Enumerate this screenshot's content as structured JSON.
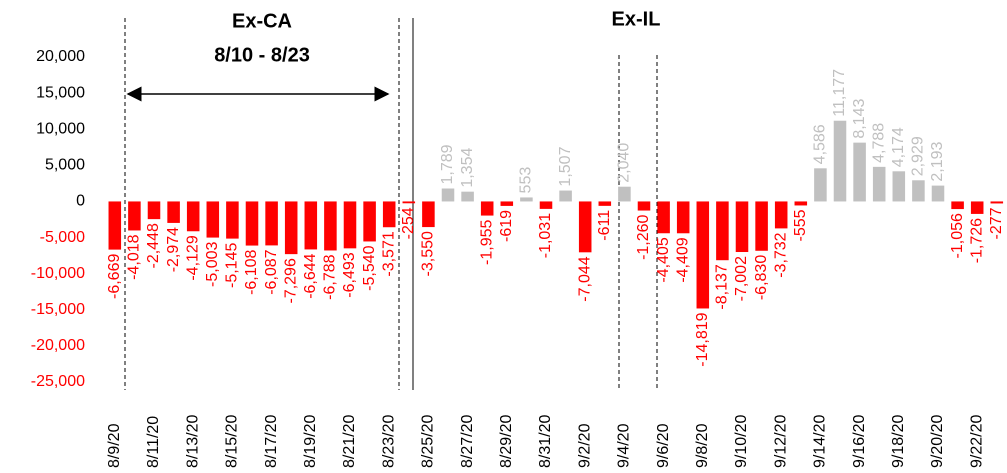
{
  "chart_data": {
    "type": "bar",
    "annotations": [
      "Ex-CA",
      "8/10 - 8/23",
      "Ex-IL"
    ],
    "categories": [
      "8/9/20",
      null,
      "8/11/20",
      null,
      "8/13/20",
      null,
      "8/15/20",
      null,
      "8/17/20",
      null,
      "8/19/20",
      null,
      "8/21/20",
      null,
      "8/23/20",
      null,
      "8/25/20",
      null,
      "8/27/20",
      null,
      "8/29/20",
      null,
      "8/31/20",
      null,
      "9/2/20",
      null,
      "9/4/20",
      null,
      "9/6/20",
      null,
      "9/8/20",
      null,
      "9/10/20",
      null,
      "9/12/20",
      null,
      "9/14/20",
      null,
      "9/16/20",
      null,
      "9/18/20",
      null,
      "9/20/20",
      null,
      "9/22/20",
      null
    ],
    "values": [
      -6669,
      -4018,
      -2448,
      -2974,
      -4129,
      -5003,
      -5145,
      -6108,
      -6087,
      -7296,
      -6644,
      -6788,
      -6493,
      -5540,
      -3571,
      -254,
      -3550,
      1789,
      1354,
      -1955,
      -619,
      553,
      -1031,
      1507,
      -7044,
      -611,
      2040,
      -1260,
      -4405,
      -4409,
      -14819,
      -8137,
      -7002,
      -6830,
      -3732,
      -555,
      4586,
      11177,
      8143,
      4788,
      4174,
      2929,
      2193,
      -1056,
      -1726,
      -277
    ],
    "value_labels": [
      "-6,669",
      "-4,018",
      "-2,448",
      "-2,974",
      "-4,129",
      "-5,003",
      "-5,145",
      "-6,108",
      "-6,087",
      "-7,296",
      "-6,644",
      "-6,788",
      "-6,493",
      "-5,540",
      "-3,571",
      "-254",
      "-3,550",
      "1,789",
      "1,354",
      "-1,955",
      "-619",
      "553",
      "-1,031",
      "1,507",
      "-7,044",
      "-611",
      "2,040",
      "-1,260",
      "-4,405",
      "-4,409",
      "-14,819",
      "-8,137",
      "-7,002",
      "-6,830",
      "-3,732",
      "-555",
      "4,586",
      "11,177",
      "8,143",
      "4,788",
      "4,174",
      "2,929",
      "2,193",
      "-1,056",
      "-1,726",
      "-277"
    ],
    "positive_color": "#c0c0c0",
    "negative_color": "#ff0000",
    "ylim": [
      -25000,
      20000
    ],
    "yticks": [
      {
        "value": -25000,
        "label": "-25,000"
      },
      {
        "value": -20000,
        "label": "-20,000"
      },
      {
        "value": -15000,
        "label": "-15,000"
      },
      {
        "value": -10000,
        "label": "-10,000"
      },
      {
        "value": -5000,
        "label": "-5,000"
      },
      0,
      {
        "value": 5000,
        "label": "5,000"
      },
      {
        "value": 10000,
        "label": "10,000"
      },
      {
        "value": 15000,
        "label": "15,000"
      },
      {
        "value": 20000,
        "label": "20,000"
      }
    ]
  }
}
